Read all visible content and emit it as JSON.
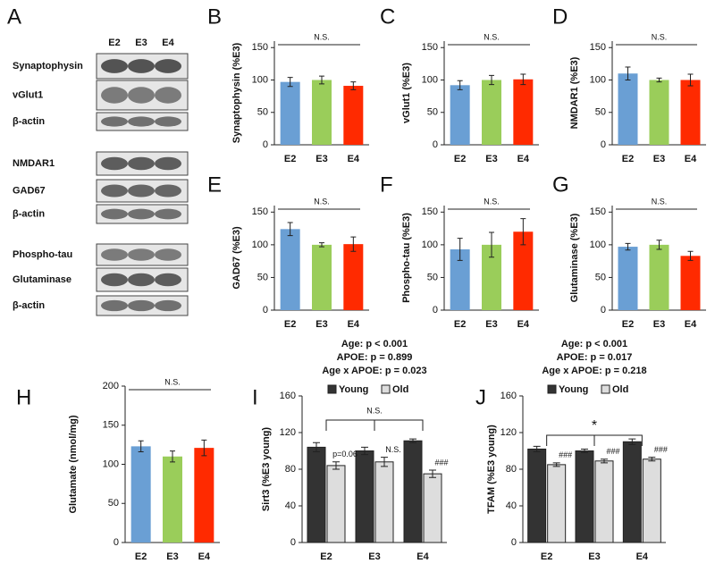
{
  "panel_a": {
    "label": "A",
    "lanes": [
      "E2",
      "E3",
      "E4"
    ],
    "rows": [
      "Synaptophysin",
      "vGlut1",
      "β-actin",
      "NMDAR1",
      "GAD67",
      "β-actin",
      "Phospho-tau",
      "Glutaminase",
      "β-actin"
    ]
  },
  "chart_data": [
    {
      "type": "bar",
      "panel": "B",
      "ylabel": "Synaptophysin (%E3)",
      "categories": [
        "E2",
        "E3",
        "E4"
      ],
      "values": [
        97,
        100,
        91
      ],
      "errors": [
        7,
        6,
        6
      ],
      "colors": [
        "#6a9fd4",
        "#9acd5a",
        "#ff2a00"
      ],
      "ylim": [
        0,
        160
      ],
      "yticks": [
        0,
        50,
        100,
        150
      ],
      "annotation": "N.S."
    },
    {
      "type": "bar",
      "panel": "C",
      "ylabel": "vGlut1 (%E3)",
      "categories": [
        "E2",
        "E3",
        "E4"
      ],
      "values": [
        92,
        100,
        101
      ],
      "errors": [
        7,
        7,
        8
      ],
      "colors": [
        "#6a9fd4",
        "#9acd5a",
        "#ff2a00"
      ],
      "ylim": [
        0,
        160
      ],
      "yticks": [
        0,
        50,
        100,
        150
      ],
      "annotation": "N.S."
    },
    {
      "type": "bar",
      "panel": "D",
      "ylabel": "NMDAR1 (%E3)",
      "categories": [
        "E2",
        "E3",
        "E4"
      ],
      "values": [
        110,
        100,
        100
      ],
      "errors": [
        10,
        3,
        9
      ],
      "colors": [
        "#6a9fd4",
        "#9acd5a",
        "#ff2a00"
      ],
      "ylim": [
        0,
        160
      ],
      "yticks": [
        0,
        50,
        100,
        150
      ],
      "annotation": "N.S."
    },
    {
      "type": "bar",
      "panel": "E",
      "ylabel": "GAD67 (%E3)",
      "categories": [
        "E2",
        "E3",
        "E4"
      ],
      "values": [
        124,
        100,
        101
      ],
      "errors": [
        10,
        3,
        11
      ],
      "colors": [
        "#6a9fd4",
        "#9acd5a",
        "#ff2a00"
      ],
      "ylim": [
        0,
        160
      ],
      "yticks": [
        0,
        50,
        100,
        150
      ],
      "annotation": "N.S."
    },
    {
      "type": "bar",
      "panel": "F",
      "ylabel": "Phospho-tau (%E3)",
      "categories": [
        "E2",
        "E3",
        "E4"
      ],
      "values": [
        93,
        100,
        120
      ],
      "errors": [
        17,
        19,
        20
      ],
      "colors": [
        "#6a9fd4",
        "#9acd5a",
        "#ff2a00"
      ],
      "ylim": [
        0,
        160
      ],
      "yticks": [
        0,
        50,
        100,
        150
      ],
      "annotation": "N.S."
    },
    {
      "type": "bar",
      "panel": "G",
      "ylabel": "Glutaminase (%E3)",
      "categories": [
        "E2",
        "E3",
        "E4"
      ],
      "values": [
        97,
        100,
        83
      ],
      "errors": [
        5,
        7,
        7
      ],
      "colors": [
        "#6a9fd4",
        "#9acd5a",
        "#ff2a00"
      ],
      "ylim": [
        0,
        160
      ],
      "yticks": [
        0,
        50,
        100,
        150
      ],
      "annotation": "N.S."
    },
    {
      "type": "bar",
      "panel": "H",
      "ylabel": "Glutamate (nmol/mg)",
      "categories": [
        "E2",
        "E3",
        "E4"
      ],
      "values": [
        123,
        110,
        121
      ],
      "errors": [
        7,
        7,
        10
      ],
      "colors": [
        "#6a9fd4",
        "#9acd5a",
        "#ff2a00"
      ],
      "ylim": [
        0,
        200
      ],
      "yticks": [
        0,
        50,
        100,
        150,
        200
      ],
      "annotation": "N.S."
    },
    {
      "type": "grouped_bar",
      "panel": "I",
      "ylabel": "Sirt3 (%E3 young)",
      "stats": [
        "Age: p < 0.001",
        "APOE: p = 0.899",
        "Age x APOE: p = 0.023"
      ],
      "categories": [
        "E2",
        "E3",
        "E4"
      ],
      "series": [
        {
          "name": "Young",
          "color": "#333333",
          "values": [
            104,
            100,
            111
          ],
          "errors": [
            5,
            4,
            2
          ]
        },
        {
          "name": "Old",
          "color": "#dddddd",
          "values": [
            84,
            88,
            75
          ],
          "errors": [
            4,
            5,
            4
          ],
          "labels": [
            "p=0.06",
            "N.S.",
            "###"
          ]
        }
      ],
      "ylim": [
        0,
        160
      ],
      "yticks": [
        0,
        40,
        80,
        120,
        160
      ],
      "bracket_label": "N.S."
    },
    {
      "type": "grouped_bar",
      "panel": "J",
      "ylabel": "TFAM (%E3 young)",
      "stats": [
        "Age: p < 0.001",
        "APOE: p = 0.017",
        "Age x APOE: p = 0.218"
      ],
      "categories": [
        "E2",
        "E3",
        "E4"
      ],
      "series": [
        {
          "name": "Young",
          "color": "#333333",
          "values": [
            102,
            100,
            110
          ],
          "errors": [
            3,
            2,
            3
          ]
        },
        {
          "name": "Old",
          "color": "#dddddd",
          "values": [
            85,
            89,
            91
          ],
          "errors": [
            2,
            2,
            2
          ],
          "labels": [
            "###",
            "###",
            "###"
          ]
        }
      ],
      "ylim": [
        0,
        160
      ],
      "yticks": [
        0,
        40,
        80,
        120,
        160
      ],
      "bracket_label": "*"
    }
  ]
}
